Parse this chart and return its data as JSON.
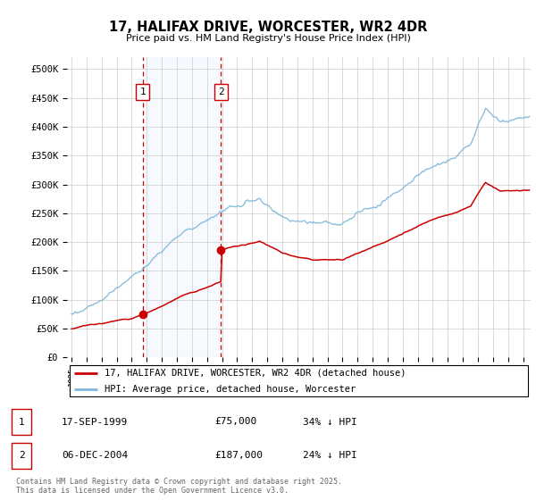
{
  "title": "17, HALIFAX DRIVE, WORCESTER, WR2 4DR",
  "subtitle": "Price paid vs. HM Land Registry's House Price Index (HPI)",
  "ylabel_ticks": [
    "£0",
    "£50K",
    "£100K",
    "£150K",
    "£200K",
    "£250K",
    "£300K",
    "£350K",
    "£400K",
    "£450K",
    "£500K"
  ],
  "ylim": [
    0,
    520000
  ],
  "yticks": [
    0,
    50000,
    100000,
    150000,
    200000,
    250000,
    300000,
    350000,
    400000,
    450000,
    500000
  ],
  "xlim_start": 1994.7,
  "xlim_end": 2025.5,
  "purchase1_year": 1999.72,
  "purchase1_price": 75000,
  "purchase2_year": 2004.93,
  "purchase2_price": 187000,
  "hpi_color": "#7db8d8",
  "price_color": "#cc0000",
  "shade_color": "#ddeeff",
  "legend_label1": "17, HALIFAX DRIVE, WORCESTER, WR2 4DR (detached house)",
  "legend_label2": "HPI: Average price, detached house, Worcester",
  "table_row1": [
    "1",
    "17-SEP-1999",
    "£75,000",
    "34% ↓ HPI"
  ],
  "table_row2": [
    "2",
    "06-DEC-2004",
    "£187,000",
    "24% ↓ HPI"
  ],
  "footer": "Contains HM Land Registry data © Crown copyright and database right 2025.\nThis data is licensed under the Open Government Licence v3.0.",
  "background_color": "#ffffff",
  "grid_color": "#cccccc"
}
